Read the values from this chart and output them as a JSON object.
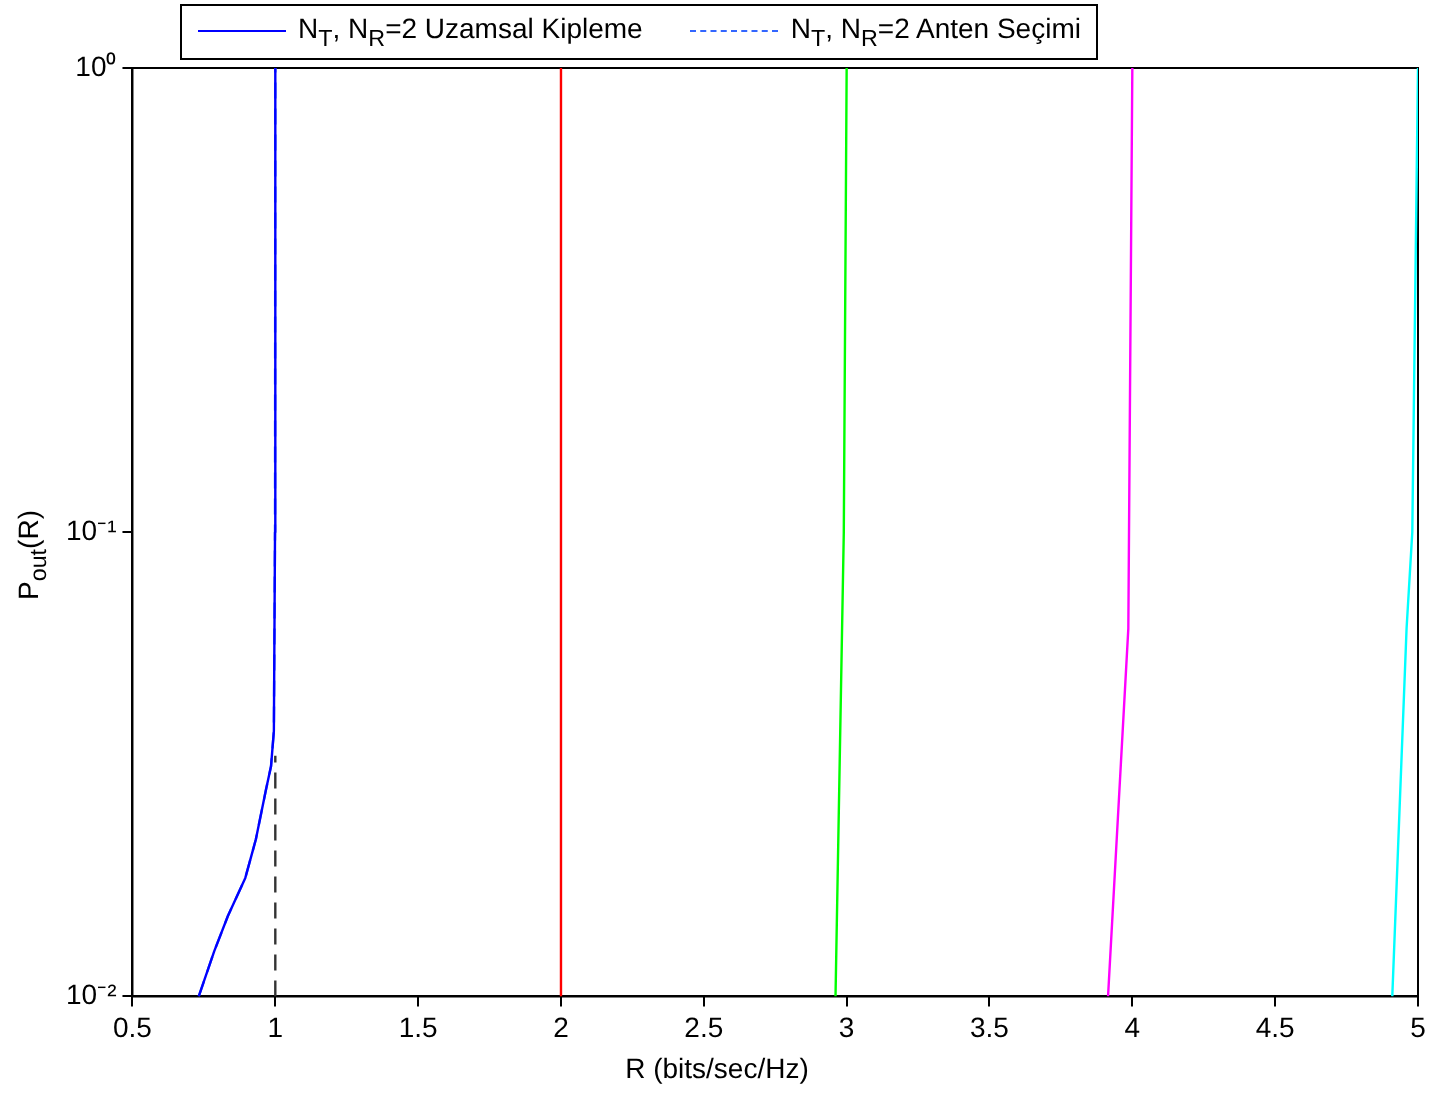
{
  "chart_data": {
    "type": "line",
    "xlabel": "R (bits/sec/Hz)",
    "ylabel": "P$_{out}$(R)",
    "xlim": [
      0.5,
      5
    ],
    "xticks": [
      0.5,
      1,
      1.5,
      2,
      2.5,
      3,
      3.5,
      4,
      4.5,
      5
    ],
    "ylim": [
      0.01,
      1
    ],
    "yticks": [
      {
        "value": 0.01,
        "label": "10⁻²"
      },
      {
        "value": 0.1,
        "label": "10⁻¹"
      },
      {
        "value": 1,
        "label": "10⁰"
      }
    ],
    "log": "y",
    "grid": false,
    "legend": "top",
    "marker": "none",
    "series": [
      {
        "name": "N$_{T}$, N$_{R}$=2 Uzamsal Kipleme",
        "color": "#0000ff",
        "line_style": "solid",
        "x": [
          0.732,
          0.786,
          0.834,
          0.895,
          0.932,
          0.968,
          0.985,
          0.995,
          0.999,
          1.0
        ],
        "values": [
          0.01,
          0.0125,
          0.0149,
          0.018,
          0.0218,
          0.028,
          0.0313,
          0.0373,
          0.1,
          1
        ]
      },
      {
        "name": "N$_{T}$, N$_{R}$=2 Anten Seçimi",
        "color": "#3366ff",
        "line_style": "dashed",
        "x": [
          0.732,
          0.786,
          0.834,
          0.895,
          0.932,
          0.968,
          0.985,
          0.995,
          0.999,
          1.0
        ],
        "values": [
          0.01,
          0.0125,
          0.0149,
          0.018,
          0.0218,
          0.028,
          0.0313,
          0.0373,
          0.1,
          1
        ]
      },
      {
        "color": "#333333",
        "line_style": "dashed",
        "x": [
          1.0,
          1.0
        ],
        "values": [
          0.01,
          0.033
        ]
      },
      {
        "color": "#ff0000",
        "line_style": "solid",
        "x": [
          2.0,
          2.0
        ],
        "values": [
          0.01,
          1
        ]
      },
      {
        "color": "#00ff00",
        "line_style": "solid",
        "x": [
          2.961,
          2.99,
          3.0
        ],
        "values": [
          0.01,
          0.1,
          1
        ]
      },
      {
        "color": "#ff00ff",
        "line_style": "solid",
        "x": [
          3.915,
          3.986,
          4.0
        ],
        "values": [
          0.01,
          0.062,
          1
        ]
      },
      {
        "color": "#00ffff",
        "line_style": "solid",
        "x": [
          4.91,
          4.96,
          4.98,
          5.0
        ],
        "values": [
          0.01,
          0.062,
          0.1,
          1
        ]
      }
    ]
  }
}
